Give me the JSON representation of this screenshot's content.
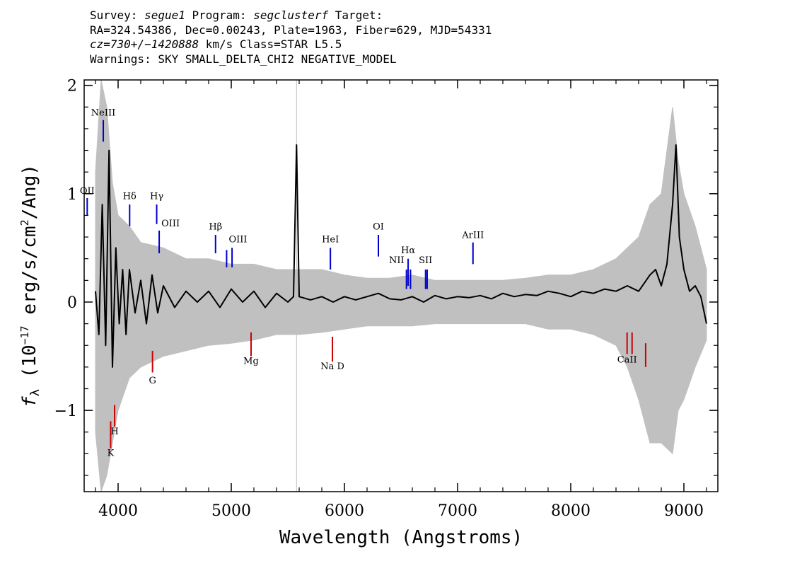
{
  "header": {
    "line1": {
      "survey_label": "Survey: ",
      "survey": "segue1",
      "program_label": " Program: ",
      "program": "segclusterf",
      "target_label": " Target:"
    },
    "line2": "RA=324.54386, Dec=0.00243, Plate=1963, Fiber=629, MJD=54331",
    "line3": {
      "cz": "cz=730+/−1420888",
      "rest": " km/s Class=STAR L5.5"
    },
    "line4": "Warnings: SKY SMALL_DELTA_CHI2 NEGATIVE_MODEL"
  },
  "colors": {
    "flux": "#000000",
    "error": "#c0c0c0",
    "emission": "#0000cc",
    "absorption": "#cc0000",
    "frame": "#000000"
  },
  "chart_data": {
    "type": "line",
    "title": "",
    "xlabel": "Wavelength (Angstroms)",
    "ylabel_parts": {
      "f": "f",
      "sub": "λ",
      "mid": " (10",
      "exp": "−17",
      "rest": " erg/s/cm",
      "exp2": "2",
      "end": "/Ang)"
    },
    "xlim": [
      3700,
      9300
    ],
    "ylim": [
      -1.75,
      2.05
    ],
    "xticks": [
      {
        "v": 4000,
        "label": "4000"
      },
      {
        "v": 5000,
        "label": "5000"
      },
      {
        "v": 6000,
        "label": "6000"
      },
      {
        "v": 7000,
        "label": "7000"
      },
      {
        "v": 8000,
        "label": "8000"
      },
      {
        "v": 9000,
        "label": "9000"
      }
    ],
    "yticks": [
      {
        "v": -1,
        "label": "−1"
      },
      {
        "v": 0,
        "label": "0"
      },
      {
        "v": 1,
        "label": "1"
      },
      {
        "v": 2,
        "label": "2"
      }
    ],
    "sky_line": 5577,
    "series": [
      {
        "role": "flux",
        "x": [
          3800,
          3830,
          3860,
          3890,
          3920,
          3950,
          3980,
          4010,
          4040,
          4070,
          4100,
          4150,
          4200,
          4250,
          4300,
          4350,
          4400,
          4500,
          4600,
          4700,
          4800,
          4900,
          5000,
          5100,
          5200,
          5300,
          5400,
          5500,
          5550,
          5577,
          5600,
          5700,
          5800,
          5900,
          6000,
          6100,
          6200,
          6300,
          6400,
          6500,
          6600,
          6700,
          6800,
          6900,
          7000,
          7100,
          7200,
          7300,
          7400,
          7500,
          7600,
          7700,
          7800,
          7900,
          8000,
          8100,
          8200,
          8300,
          8400,
          8500,
          8600,
          8700,
          8750,
          8800,
          8850,
          8900,
          8930,
          8960,
          9000,
          9050,
          9100,
          9150,
          9200
        ],
        "y": [
          0.1,
          -0.3,
          0.9,
          -0.4,
          1.4,
          -0.6,
          0.5,
          -0.2,
          0.3,
          -0.3,
          0.3,
          -0.1,
          0.2,
          -0.2,
          0.25,
          -0.1,
          0.15,
          -0.05,
          0.1,
          0.0,
          0.1,
          -0.05,
          0.12,
          0.0,
          0.1,
          -0.05,
          0.08,
          0.0,
          0.05,
          1.45,
          0.05,
          0.02,
          0.05,
          0.0,
          0.05,
          0.02,
          0.05,
          0.08,
          0.03,
          0.02,
          0.05,
          0.0,
          0.06,
          0.03,
          0.05,
          0.04,
          0.06,
          0.03,
          0.08,
          0.05,
          0.07,
          0.06,
          0.1,
          0.08,
          0.05,
          0.1,
          0.08,
          0.12,
          0.1,
          0.15,
          0.1,
          0.25,
          0.3,
          0.15,
          0.35,
          0.9,
          1.45,
          0.6,
          0.3,
          0.1,
          0.15,
          0.05,
          -0.2
        ]
      },
      {
        "role": "error_upper",
        "x": [
          3800,
          3850,
          3900,
          3950,
          4000,
          4100,
          4200,
          4400,
          4600,
          4800,
          5000,
          5200,
          5400,
          5600,
          5800,
          6000,
          6200,
          6400,
          6600,
          6800,
          7000,
          7200,
          7400,
          7600,
          7800,
          8000,
          8200,
          8400,
          8500,
          8600,
          8700,
          8800,
          8900,
          8950,
          9000,
          9100,
          9200
        ],
        "y": [
          1.2,
          2.05,
          1.8,
          1.1,
          0.8,
          0.7,
          0.55,
          0.5,
          0.4,
          0.4,
          0.35,
          0.35,
          0.3,
          0.3,
          0.3,
          0.25,
          0.22,
          0.22,
          0.25,
          0.2,
          0.2,
          0.2,
          0.2,
          0.22,
          0.25,
          0.25,
          0.3,
          0.4,
          0.5,
          0.6,
          0.9,
          1.0,
          1.8,
          1.3,
          1.0,
          0.7,
          0.3
        ]
      },
      {
        "role": "error_lower",
        "x": [
          3800,
          3850,
          3900,
          3950,
          4000,
          4100,
          4200,
          4400,
          4600,
          4800,
          5000,
          5200,
          5400,
          5600,
          5800,
          6000,
          6200,
          6400,
          6600,
          6800,
          7000,
          7200,
          7400,
          7600,
          7800,
          8000,
          8200,
          8400,
          8500,
          8600,
          8700,
          8800,
          8900,
          8950,
          9000,
          9100,
          9200
        ],
        "y": [
          -1.2,
          -1.75,
          -1.6,
          -1.3,
          -1.0,
          -0.7,
          -0.6,
          -0.5,
          -0.45,
          -0.4,
          -0.38,
          -0.35,
          -0.3,
          -0.3,
          -0.28,
          -0.25,
          -0.22,
          -0.22,
          -0.22,
          -0.2,
          -0.2,
          -0.2,
          -0.2,
          -0.2,
          -0.25,
          -0.25,
          -0.3,
          -0.4,
          -0.6,
          -0.9,
          -1.3,
          -1.3,
          -1.4,
          -1.0,
          -0.9,
          -0.6,
          -0.35
        ]
      }
    ],
    "emission_lines": [
      {
        "label": "OII",
        "x": 3727,
        "y0": 0.8,
        "y1": 0.96,
        "ly": 1.0,
        "anchor": "middle"
      },
      {
        "label": "NeIII",
        "x": 3869,
        "y0": 1.48,
        "y1": 1.68,
        "ly": 1.72,
        "anchor": "middle"
      },
      {
        "label": "Hδ",
        "x": 4102,
        "y0": 0.7,
        "y1": 0.9,
        "ly": 0.95,
        "anchor": "middle"
      },
      {
        "label": "Hγ",
        "x": 4341,
        "y0": 0.72,
        "y1": 0.9,
        "ly": 0.95,
        "anchor": "middle"
      },
      {
        "label": "OIII",
        "x": 4363,
        "y0": 0.45,
        "y1": 0.66,
        "ly": 0.7,
        "anchor": "start"
      },
      {
        "label": "Hβ",
        "x": 4861,
        "y0": 0.45,
        "y1": 0.62,
        "ly": 0.67,
        "anchor": "middle"
      },
      {
        "label": "OIII",
        "x": 4959,
        "y0": 0.32,
        "y1": 0.48,
        "ly": 0.55,
        "anchor": "start"
      },
      {
        "label": "",
        "x": 5007,
        "y0": 0.32,
        "y1": 0.5,
        "ly": 0.55,
        "anchor": "start"
      },
      {
        "label": "HeI",
        "x": 5876,
        "y0": 0.3,
        "y1": 0.5,
        "ly": 0.55,
        "anchor": "middle"
      },
      {
        "label": "OI",
        "x": 6300,
        "y0": 0.42,
        "y1": 0.62,
        "ly": 0.67,
        "anchor": "middle"
      },
      {
        "label": "NII",
        "x": 6548,
        "y0": 0.12,
        "y1": 0.3,
        "ly": 0.36,
        "anchor": "end"
      },
      {
        "label": "Hα",
        "x": 6563,
        "y0": 0.15,
        "y1": 0.4,
        "ly": 0.45,
        "anchor": "middle"
      },
      {
        "label": "",
        "x": 6584,
        "y0": 0.12,
        "y1": 0.3,
        "ly": 0.36,
        "anchor": "end"
      },
      {
        "label": "SII",
        "x": 6717,
        "y0": 0.12,
        "y1": 0.3,
        "ly": 0.36,
        "anchor": "middle"
      },
      {
        "label": "",
        "x": 6731,
        "y0": 0.12,
        "y1": 0.3,
        "ly": 0.36,
        "anchor": "middle"
      },
      {
        "label": "ArIII",
        "x": 7136,
        "y0": 0.35,
        "y1": 0.55,
        "ly": 0.59,
        "anchor": "middle"
      }
    ],
    "absorption_lines": [
      {
        "label": "K",
        "x": 3934,
        "y0": -1.35,
        "y1": -1.1,
        "ly": -1.42
      },
      {
        "label": "H",
        "x": 3969,
        "y0": -1.15,
        "y1": -0.95,
        "ly": -1.22
      },
      {
        "label": "G",
        "x": 4304,
        "y0": -0.65,
        "y1": -0.45,
        "ly": -0.75
      },
      {
        "label": "Mg",
        "x": 5175,
        "y0": -0.5,
        "y1": -0.28,
        "ly": -0.57
      },
      {
        "label": "Na D",
        "x": 5894,
        "y0": -0.55,
        "y1": -0.32,
        "ly": -0.62
      },
      {
        "label": "CaII",
        "x": 8498,
        "y0": -0.48,
        "y1": -0.28,
        "ly": -0.56
      },
      {
        "label": "",
        "x": 8542,
        "y0": -0.48,
        "y1": -0.28,
        "ly": -0.56
      },
      {
        "label": "",
        "x": 8662,
        "y0": -0.6,
        "y1": -0.38,
        "ly": -0.56
      }
    ]
  }
}
